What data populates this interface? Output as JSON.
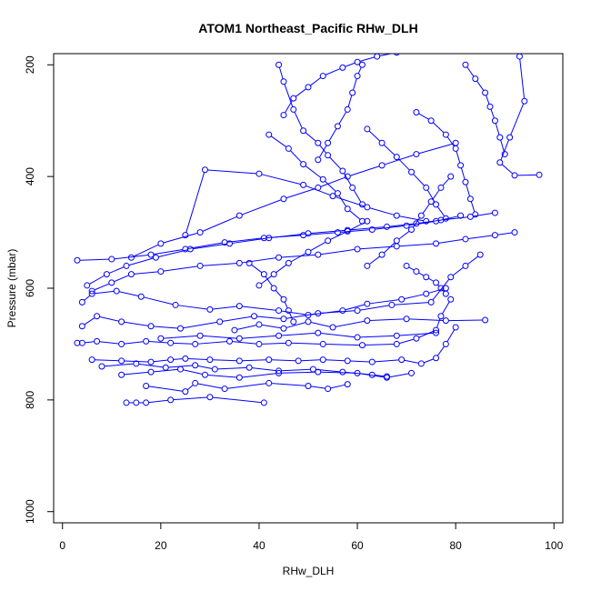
{
  "chart_data": {
    "type": "line",
    "title": "ATOM1 Northeast_Pacific RHw_DLH",
    "xlabel": "RHw_DLH",
    "ylabel": "Pressure (mbar)",
    "xlim": [
      0,
      100
    ],
    "ylim": [
      1020,
      180
    ],
    "y_reversed": true,
    "xticks": [
      0,
      20,
      40,
      60,
      80,
      100
    ],
    "yticks": [
      200,
      400,
      600,
      800,
      1000
    ],
    "grid": false,
    "legend": "none",
    "color": "#0000ff",
    "marker": "open-circle",
    "series": [
      {
        "values": [
          [
            13,
            805
          ],
          [
            15,
            805
          ],
          [
            17,
            805
          ],
          [
            22,
            800
          ],
          [
            30,
            795
          ],
          [
            41,
            805
          ]
        ]
      },
      {
        "values": [
          [
            17,
            775
          ],
          [
            25,
            785
          ],
          [
            27,
            770
          ],
          [
            33,
            780
          ],
          [
            42,
            770
          ],
          [
            50,
            775
          ],
          [
            54,
            780
          ],
          [
            58,
            772
          ]
        ]
      },
      {
        "values": [
          [
            12,
            755
          ],
          [
            18,
            750
          ],
          [
            24,
            745
          ],
          [
            29,
            755
          ],
          [
            36,
            760
          ],
          [
            44,
            752
          ],
          [
            52,
            750
          ],
          [
            60,
            752
          ],
          [
            66,
            760
          ],
          [
            71,
            752
          ]
        ]
      },
      {
        "values": [
          [
            8,
            740
          ],
          [
            15,
            735
          ],
          [
            21,
            742
          ],
          [
            27,
            738
          ],
          [
            31,
            745
          ],
          [
            38,
            742
          ],
          [
            44,
            748
          ],
          [
            51,
            745
          ],
          [
            57,
            750
          ],
          [
            63,
            755
          ],
          [
            66,
            758
          ]
        ]
      },
      {
        "values": [
          [
            6,
            728
          ],
          [
            12,
            730
          ],
          [
            18,
            732
          ],
          [
            22,
            728
          ],
          [
            25,
            726
          ],
          [
            30,
            728
          ],
          [
            36,
            730
          ],
          [
            42,
            728
          ],
          [
            48,
            730
          ],
          [
            53,
            728
          ],
          [
            58,
            730
          ],
          [
            63,
            732
          ],
          [
            69,
            728
          ],
          [
            73,
            735
          ],
          [
            76,
            725
          ],
          [
            78,
            700
          ],
          [
            80,
            670
          ]
        ]
      },
      {
        "values": [
          [
            3,
            698
          ],
          [
            4,
            698
          ],
          [
            7,
            695
          ],
          [
            12,
            700
          ],
          [
            17,
            695
          ],
          [
            22,
            698
          ],
          [
            27,
            700
          ],
          [
            34,
            695
          ],
          [
            40,
            700
          ],
          [
            46,
            698
          ],
          [
            53,
            700
          ],
          [
            61,
            702
          ],
          [
            68,
            700
          ],
          [
            72,
            690
          ],
          [
            76,
            675
          ],
          [
            77,
            650
          ],
          [
            79,
            620
          ]
        ]
      },
      {
        "values": [
          [
            4,
            668
          ],
          [
            7,
            650
          ],
          [
            12,
            660
          ],
          [
            18,
            668
          ],
          [
            24,
            672
          ],
          [
            32,
            660
          ],
          [
            39,
            650
          ],
          [
            45,
            655
          ],
          [
            52,
            645
          ],
          [
            60,
            640
          ],
          [
            67,
            630
          ],
          [
            75,
            625
          ],
          [
            79,
            580
          ],
          [
            82,
            560
          ],
          [
            85,
            540
          ]
        ]
      },
      {
        "values": [
          [
            4,
            625
          ],
          [
            6,
            610
          ],
          [
            11,
            605
          ],
          [
            16,
            615
          ],
          [
            23,
            630
          ],
          [
            30,
            638
          ],
          [
            36,
            632
          ],
          [
            44,
            640
          ],
          [
            50,
            648
          ],
          [
            57,
            640
          ],
          [
            62,
            628
          ],
          [
            69,
            620
          ],
          [
            74,
            610
          ],
          [
            78,
            600
          ]
        ]
      },
      {
        "values": [
          [
            6,
            605
          ],
          [
            10,
            590
          ],
          [
            14,
            575
          ],
          [
            20,
            570
          ],
          [
            28,
            560
          ],
          [
            36,
            555
          ],
          [
            44,
            545
          ],
          [
            52,
            540
          ],
          [
            60,
            530
          ],
          [
            68,
            525
          ],
          [
            76,
            520
          ],
          [
            82,
            512
          ],
          [
            88,
            505
          ],
          [
            92,
            500
          ]
        ]
      },
      {
        "values": [
          [
            5,
            595
          ],
          [
            9,
            575
          ],
          [
            13,
            560
          ],
          [
            19,
            545
          ],
          [
            26,
            530
          ],
          [
            34,
            520
          ],
          [
            42,
            510
          ],
          [
            50,
            502
          ],
          [
            58,
            496
          ],
          [
            66,
            490
          ],
          [
            72,
            484
          ],
          [
            77,
            478
          ],
          [
            83,
            472
          ],
          [
            88,
            465
          ]
        ]
      },
      {
        "values": [
          [
            3,
            550
          ],
          [
            10,
            548
          ],
          [
            18,
            540
          ],
          [
            25,
            530
          ],
          [
            33,
            518
          ],
          [
            41,
            510
          ],
          [
            49,
            505
          ],
          [
            56,
            500
          ],
          [
            63,
            495
          ],
          [
            70,
            488
          ],
          [
            76,
            480
          ],
          [
            81,
            470
          ]
        ]
      },
      {
        "values": [
          [
            14,
            545
          ],
          [
            20,
            520
          ],
          [
            28,
            500
          ],
          [
            36,
            470
          ],
          [
            45,
            440
          ],
          [
            52,
            420
          ],
          [
            58,
            400
          ],
          [
            65,
            380
          ],
          [
            72,
            360
          ],
          [
            80,
            340
          ]
        ]
      },
      {
        "values": [
          [
            25,
            505
          ],
          [
            29,
            388
          ],
          [
            40,
            395
          ],
          [
            49,
            415
          ],
          [
            55,
            435
          ],
          [
            62,
            455
          ],
          [
            68,
            470
          ],
          [
            74,
            480
          ]
        ]
      },
      {
        "values": [
          [
            44,
            200
          ],
          [
            45,
            230
          ],
          [
            47,
            280
          ],
          [
            49,
            318
          ],
          [
            52,
            340
          ],
          [
            54,
            362
          ],
          [
            57,
            390
          ],
          [
            59,
            420
          ],
          [
            61,
            450
          ]
        ]
      },
      {
        "values": [
          [
            45,
            290
          ],
          [
            47,
            260
          ],
          [
            50,
            240
          ],
          [
            53,
            220
          ],
          [
            57,
            205
          ],
          [
            60,
            195
          ],
          [
            64,
            185
          ],
          [
            68,
            178
          ]
        ]
      },
      {
        "values": [
          [
            52,
            370
          ],
          [
            54,
            340
          ],
          [
            56,
            310
          ],
          [
            58,
            280
          ],
          [
            59,
            250
          ],
          [
            60,
            220
          ],
          [
            61,
            200
          ]
        ]
      },
      {
        "values": [
          [
            42,
            325
          ],
          [
            46,
            350
          ],
          [
            49,
            378
          ],
          [
            53,
            405
          ],
          [
            56,
            430
          ],
          [
            58,
            458
          ],
          [
            61,
            480
          ]
        ]
      },
      {
        "values": [
          [
            62,
            315
          ],
          [
            65,
            340
          ],
          [
            68,
            365
          ],
          [
            71,
            392
          ],
          [
            74,
            420
          ],
          [
            76,
            450
          ],
          [
            78,
            475
          ]
        ]
      },
      {
        "values": [
          [
            72,
            285
          ],
          [
            75,
            300
          ],
          [
            78,
            325
          ],
          [
            80,
            350
          ],
          [
            81,
            380
          ],
          [
            82,
            410
          ],
          [
            83,
            440
          ],
          [
            84,
            468
          ]
        ]
      },
      {
        "values": [
          [
            82,
            200
          ],
          [
            84,
            225
          ],
          [
            86,
            250
          ],
          [
            87,
            275
          ],
          [
            88,
            300
          ],
          [
            89,
            330
          ],
          [
            90,
            360
          ]
        ]
      },
      {
        "values": [
          [
            93,
            185
          ],
          [
            94,
            265
          ],
          [
            91,
            330
          ],
          [
            89,
            375
          ],
          [
            92,
            398
          ],
          [
            97,
            397
          ]
        ]
      },
      {
        "values": [
          [
            62,
            560
          ],
          [
            65,
            540
          ],
          [
            68,
            515
          ],
          [
            71,
            495
          ],
          [
            73,
            470
          ],
          [
            75,
            445
          ],
          [
            77,
            420
          ],
          [
            79,
            400
          ]
        ]
      },
      {
        "values": [
          [
            70,
            560
          ],
          [
            72,
            570
          ],
          [
            74,
            580
          ],
          [
            76,
            590
          ],
          [
            77,
            600
          ],
          [
            78,
            610
          ]
        ]
      },
      {
        "values": [
          [
            40,
            595
          ],
          [
            43,
            575
          ],
          [
            46,
            555
          ],
          [
            50,
            535
          ],
          [
            54,
            515
          ],
          [
            58,
            498
          ],
          [
            62,
            480
          ]
        ]
      },
      {
        "values": [
          [
            38,
            555
          ],
          [
            41,
            575
          ],
          [
            43,
            600
          ],
          [
            45,
            620
          ],
          [
            46,
            640
          ],
          [
            47,
            660
          ]
        ]
      },
      {
        "values": [
          [
            35,
            675
          ],
          [
            40,
            665
          ],
          [
            45,
            672
          ],
          [
            50,
            660
          ],
          [
            55,
            670
          ],
          [
            62,
            658
          ],
          [
            70,
            655
          ],
          [
            78,
            658
          ],
          [
            86,
            657
          ]
        ]
      },
      {
        "values": [
          [
            20,
            690
          ],
          [
            28,
            685
          ],
          [
            36,
            690
          ],
          [
            44,
            685
          ],
          [
            52,
            680
          ],
          [
            60,
            688
          ],
          [
            68,
            685
          ],
          [
            76,
            680
          ]
        ]
      }
    ]
  }
}
